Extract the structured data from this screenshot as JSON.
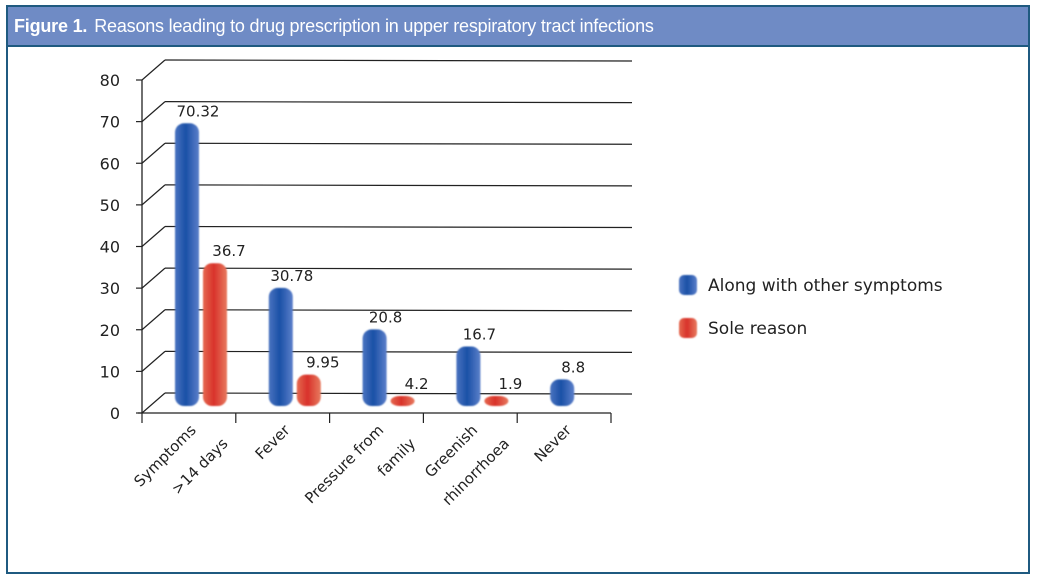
{
  "figure": {
    "label": "Figure 1.",
    "title": "Reasons leading to drug prescription in upper respiratory tract infections"
  },
  "colors": {
    "frame": "#1f5a80",
    "title_bar": "#6f8bc5",
    "series_blue": "#1f55a8",
    "series_red": "#d9372c"
  },
  "chart_data": {
    "type": "bar",
    "title": "Reasons leading to drug prescription in upper respiratory tract infections",
    "xlabel": "",
    "ylabel": "",
    "ylim": [
      0,
      80
    ],
    "yticks": [
      0,
      10,
      20,
      30,
      40,
      50,
      60,
      70,
      80
    ],
    "grid": true,
    "legend_position": "right",
    "style": "3d-rounded-bars",
    "categories": [
      [
        "Symptoms",
        ">14 days"
      ],
      [
        "Fever"
      ],
      [
        "Pressure from",
        "family"
      ],
      [
        "Greenish",
        "rhinorrhoea"
      ],
      [
        "Never"
      ]
    ],
    "series": [
      {
        "name": "Along with other symptoms",
        "color": "#1f55a8",
        "values": [
          70.32,
          30.78,
          20.8,
          16.7,
          8.8
        ],
        "labels": [
          "70.32",
          "30.78",
          "20.8",
          "16.7",
          "8.8"
        ]
      },
      {
        "name": "Sole reason",
        "color": "#d9372c",
        "values": [
          36.7,
          9.95,
          4.2,
          1.9,
          null
        ],
        "labels": [
          "36.7",
          "9.95",
          "4.2",
          "1.9",
          null
        ]
      }
    ]
  }
}
